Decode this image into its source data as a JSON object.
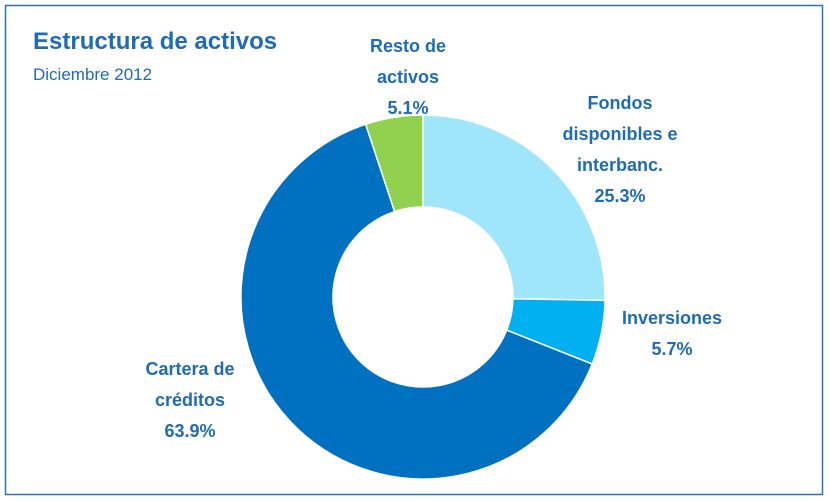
{
  "chart_data": {
    "type": "pie",
    "title": "Estructura de activos",
    "subtitle": "Diciembre 2012",
    "categories": [
      [
        "Fondos",
        "disponibles e",
        "interbanc."
      ],
      [
        "Inversiones"
      ],
      [
        "Cartera de",
        "créditos"
      ],
      [
        "Resto de",
        "activos"
      ]
    ],
    "values": [
      25.3,
      5.7,
      63.9,
      5.1
    ],
    "value_labels": [
      "25.3%",
      "5.7%",
      "63.9%",
      "5.1%"
    ],
    "colors": [
      "#9fe6fb",
      "#00b0f0",
      "#0070c0",
      "#92d050"
    ]
  }
}
